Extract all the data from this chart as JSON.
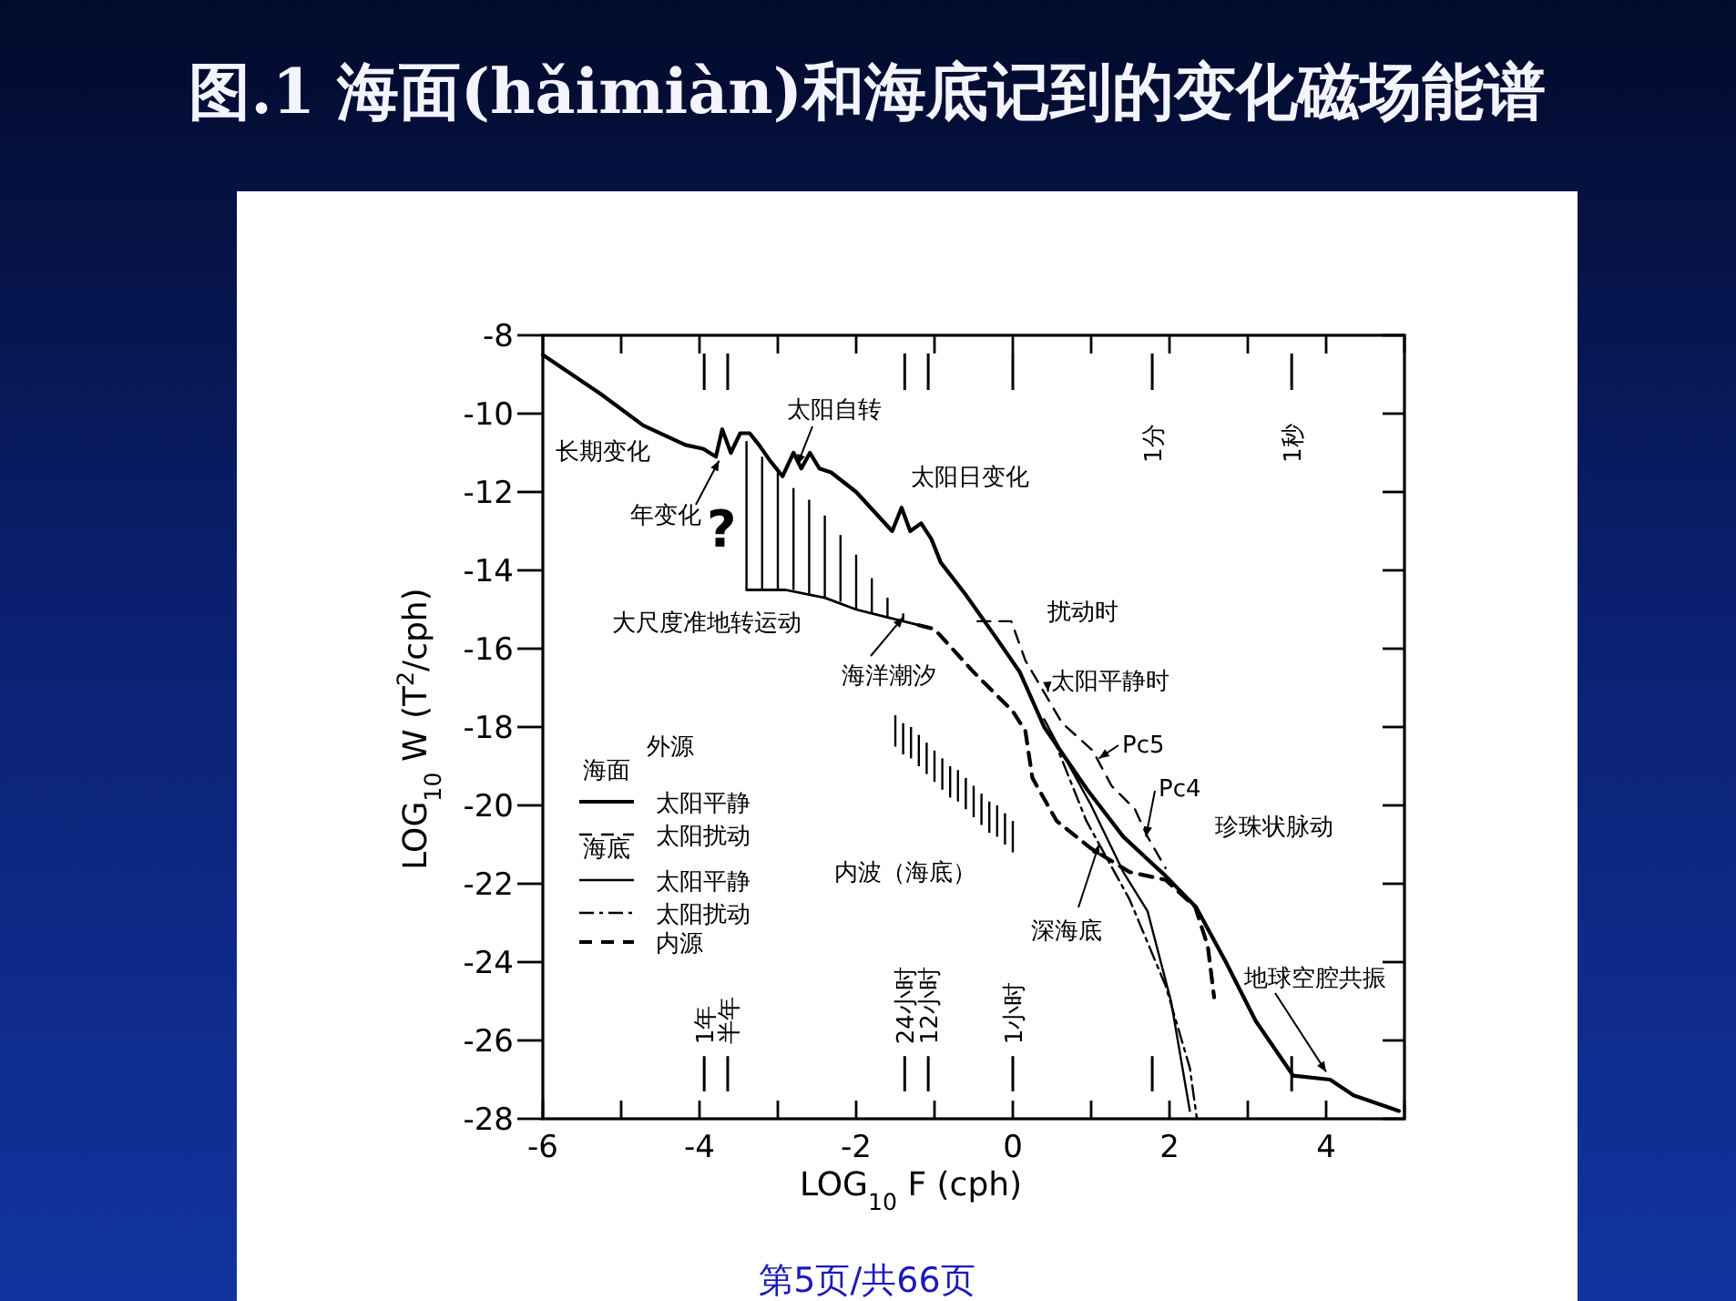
{
  "chart_data": {
    "type": "line",
    "title": "图.1 海面(hǎimiàn)和海底记到的变化磁场能谱",
    "xlabel": "LOG$_{10}$ F (cph)",
    "ylabel": "LOG$_{10}$ W (T$^{2}$/cph)",
    "legend_title": "外源",
    "legend": "left",
    "grid": false,
    "xlim": [
      -6,
      5
    ],
    "ylim": [
      -28,
      -8
    ],
    "xticks": [
      -6,
      {
        "value": -5,
        "label": null
      },
      -4,
      {
        "value": -3,
        "label": null
      },
      -2,
      {
        "value": -1,
        "label": null
      },
      0,
      {
        "value": 1,
        "label": null
      },
      2,
      {
        "value": 3,
        "label": null
      },
      4,
      {
        "value": 5,
        "label": null
      }
    ],
    "yticks": [
      -28,
      -26,
      -24,
      -22,
      -20,
      -18,
      -16,
      -14,
      -12,
      -10,
      -8
    ],
    "series": [
      {
        "name": "太阳平静",
        "type": "line",
        "color": "#000000",
        "line_style": "solid",
        "x": [
          -6,
          -5.26,
          -4.72,
          -4.18,
          -3.95,
          -3.79,
          -3.71,
          -3.6,
          -3.48,
          -3.36,
          -3.24,
          -3.1,
          -2.94,
          -2.8,
          -2.7,
          -2.59,
          -2.47,
          -2.32,
          -2.0,
          -1.54,
          -1.42,
          -1.31,
          -1.17,
          -1.04,
          -0.92,
          -0.61,
          -0.22,
          0.09,
          0.4,
          0.95,
          1.41,
          1.95,
          2.34,
          2.72,
          3.1,
          3.58,
          4.05,
          4.35,
          4.93
        ],
        "values": [
          -8.5,
          -9.5,
          -10.3,
          -10.8,
          -10.9,
          -11.1,
          -10.4,
          -11.0,
          -10.5,
          -10.5,
          -10.8,
          -11.2,
          -11.6,
          -11.0,
          -11.4,
          -11.0,
          -11.4,
          -11.5,
          -12.0,
          -13.0,
          -12.4,
          -13.0,
          -12.8,
          -13.2,
          -13.8,
          -14.6,
          -15.7,
          -16.6,
          -18.0,
          -19.6,
          -20.8,
          -21.8,
          -22.6,
          -24.0,
          -25.5,
          -26.9,
          -27.0,
          -27.4,
          -27.8
        ]
      },
      {
        "name": "太阳扰动",
        "type": "line",
        "color": "#000000",
        "line_style": "dashed",
        "x": [
          -0.45,
          -0.02,
          0.16,
          0.63,
          1.02,
          1.26,
          1.56,
          1.72,
          1.95
        ],
        "values": [
          -15.3,
          -15.3,
          -16.3,
          -17.9,
          -18.6,
          -19.5,
          -20.1,
          -20.8,
          -21.6
        ]
      },
      {
        "name": "太阳平静",
        "type": "line",
        "color": "#000000",
        "line_style": "solid",
        "x": [
          0.4,
          0.56,
          1.0,
          1.41,
          1.72,
          2.02,
          2.26
        ],
        "values": [
          -17.8,
          -18.4,
          -20.0,
          -21.7,
          -22.7,
          -25.0,
          -27.8
        ]
      },
      {
        "name": "太阳扰动",
        "type": "line",
        "color": "#000000",
        "line_style": "dashdot",
        "x": [
          0.5,
          0.94,
          1.49,
          1.95,
          2.26,
          2.35
        ],
        "values": [
          -18.2,
          -20.4,
          -22.4,
          -24.6,
          -26.7,
          -28.0
        ]
      },
      {
        "name": "内源",
        "type": "line",
        "color": "#000000",
        "line_style": "dashed",
        "x": [
          -1.2,
          -1.0,
          -0.5,
          0.0,
          0.16,
          0.25,
          0.56,
          1.0,
          1.49,
          1.95,
          2.33,
          2.49,
          2.57
        ],
        "values": [
          -15.4,
          -15.5,
          -16.6,
          -17.6,
          -18.1,
          -19.3,
          -20.4,
          -21.1,
          -21.7,
          -21.9,
          -22.6,
          -23.6,
          -24.9
        ]
      },
      {
        "type": "bar",
        "color": "#000000",
        "x": [
          -3.4,
          -3.2,
          -3.0,
          -2.8,
          -2.6,
          -2.4,
          -2.2,
          -2.0,
          -1.8,
          -1.6,
          -1.4
        ],
        "base": [
          -14.5,
          -14.5,
          -14.5,
          -14.5,
          -14.6,
          -14.7,
          -14.8,
          -15.0,
          -15.1,
          -15.2,
          -15.3
        ],
        "values": [
          3.8,
          3.4,
          3.0,
          2.6,
          2.4,
          2.1,
          1.7,
          1.4,
          0.9,
          0.5,
          0.2
        ]
      },
      {
        "type": "bar",
        "color": "#000000",
        "x": [
          -1.5,
          -1.4,
          -1.3,
          -1.2,
          -1.1,
          -1.0,
          -0.9,
          -0.8,
          -0.7,
          -0.6,
          -0.5,
          -0.4,
          -0.3,
          -0.2,
          -0.1,
          0.0
        ],
        "base": [
          -18.5,
          -18.7,
          -18.8,
          -19.0,
          -19.2,
          -19.4,
          -19.6,
          -19.8,
          -19.9,
          -20.1,
          -20.3,
          -20.5,
          -20.7,
          -20.8,
          -21.0,
          -21.2
        ],
        "values": [
          0.8,
          0.8,
          0.8,
          0.8,
          0.8,
          0.8,
          0.8,
          0.8,
          0.8,
          0.8,
          0.8,
          0.8,
          0.8,
          0.8,
          0.8,
          0.8
        ]
      },
      {
        "type": "line",
        "color": "#000000",
        "line_style": "solid",
        "x": [
          -3.4,
          -2.9,
          -2.4,
          -2.0,
          -1.6,
          -1.2
        ],
        "values": [
          -14.5,
          -14.5,
          -14.7,
          -15.0,
          -15.2,
          -15.4
        ]
      }
    ],
    "ref_lines": [
      {
        "axis": "x",
        "value": -3.94,
        "label": "1年"
      },
      {
        "axis": "x",
        "value": -3.64,
        "label": "半年"
      },
      {
        "axis": "x",
        "value": -1.38,
        "label": "24小时"
      },
      {
        "axis": "x",
        "value": -1.08,
        "label": "12小时"
      },
      {
        "axis": "x",
        "value": 0,
        "label": "1小时"
      },
      {
        "axis": "x",
        "value": 1.78,
        "label": "1分"
      },
      {
        "axis": "x",
        "value": 3.56,
        "label": "1秒"
      }
    ],
    "annotations": [
      "长期变化",
      {
        "text": "年变化",
        "x": -3.75,
        "y": -11.2
      },
      {
        "text": "太阳自转",
        "x": -2.75,
        "y": -11.3
      },
      "太阳日变化",
      "?",
      "大尺度准地转运动",
      {
        "text": "海洋潮汐",
        "x": -1.4,
        "y": -15.2
      },
      "扰动时",
      {
        "text": "太阳平静时",
        "x": 0.45,
        "y": -17.1
      },
      {
        "text": "Pc5",
        "x": 1.1,
        "y": -18.8
      },
      {
        "text": "Pc4",
        "x": 1.7,
        "y": -20.8
      },
      "珍珠状脉动",
      "内波（海底）",
      {
        "text": "深海底",
        "x": 1.1,
        "y": -21.0
      },
      {
        "text": "地球空腔共振",
        "x": 4.0,
        "y": -26.8
      },
      "第5页/共66页",
      "海面",
      "海底"
    ]
  }
}
